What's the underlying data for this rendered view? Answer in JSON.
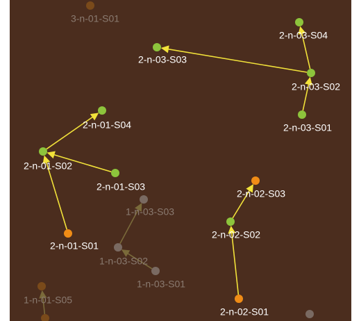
{
  "graph": {
    "background_color": "#4b2d1e",
    "edge_color": "#f2e23a",
    "faded_edge_color": "#7a6a3a",
    "node_colors": {
      "green": "#8dc43c",
      "orange": "#f08c16",
      "gray": "#7a6a62",
      "dark_orange": "#7a4a1a"
    },
    "nodes": [
      {
        "id": "n1",
        "label": "3-n-01-S01",
        "color": "dark_orange",
        "faded": true
      },
      {
        "id": "n2",
        "label": "2-n-03-S04",
        "color": "green",
        "faded": false
      },
      {
        "id": "n3",
        "label": "2-n-03-S03",
        "color": "green",
        "faded": false
      },
      {
        "id": "n4",
        "label": "2-n-03-S02",
        "color": "green",
        "faded": false
      },
      {
        "id": "n5",
        "label": "2-n-03-S01",
        "color": "green",
        "faded": false
      },
      {
        "id": "n6",
        "label": "2-n-01-S04",
        "color": "green",
        "faded": false
      },
      {
        "id": "n7",
        "label": "2-n-01-S02",
        "color": "green",
        "faded": false
      },
      {
        "id": "n8",
        "label": "2-n-01-S03",
        "color": "green",
        "faded": false
      },
      {
        "id": "n9",
        "label": "2-n-01-S01",
        "color": "orange",
        "faded": false
      },
      {
        "id": "n10",
        "label": "1-n-03-S03",
        "color": "gray",
        "faded": true
      },
      {
        "id": "n11",
        "label": "1-n-03-S02",
        "color": "gray",
        "faded": true
      },
      {
        "id": "n12",
        "label": "1-n-03-S01",
        "color": "gray",
        "faded": true
      },
      {
        "id": "n13",
        "label": "2-n-02-S03",
        "color": "orange",
        "faded": false
      },
      {
        "id": "n14",
        "label": "2-n-02-S02",
        "color": "green",
        "faded": false
      },
      {
        "id": "n15",
        "label": "2-n-02-S01",
        "color": "orange",
        "faded": false
      },
      {
        "id": "n16",
        "label": "1-n-01-S05",
        "color": "dark_orange",
        "faded": true
      },
      {
        "id": "n17",
        "label": "",
        "color": "dark_orange",
        "faded": true
      },
      {
        "id": "n18",
        "label": "",
        "color": "gray",
        "faded": true
      }
    ],
    "edges": [
      {
        "from": "n4",
        "to": "n2",
        "faded": false
      },
      {
        "from": "n4",
        "to": "n3",
        "faded": false
      },
      {
        "from": "n5",
        "to": "n4",
        "faded": false
      },
      {
        "from": "n7",
        "to": "n6",
        "faded": false
      },
      {
        "from": "n8",
        "to": "n7",
        "faded": false
      },
      {
        "from": "n9",
        "to": "n7",
        "faded": false
      },
      {
        "from": "n14",
        "to": "n13",
        "faded": false
      },
      {
        "from": "n15",
        "to": "n14",
        "faded": false
      },
      {
        "from": "n11",
        "to": "n10",
        "faded": true
      },
      {
        "from": "n12",
        "to": "n11",
        "faded": true
      },
      {
        "from": "n17",
        "to": "n16",
        "faded": true
      }
    ]
  }
}
